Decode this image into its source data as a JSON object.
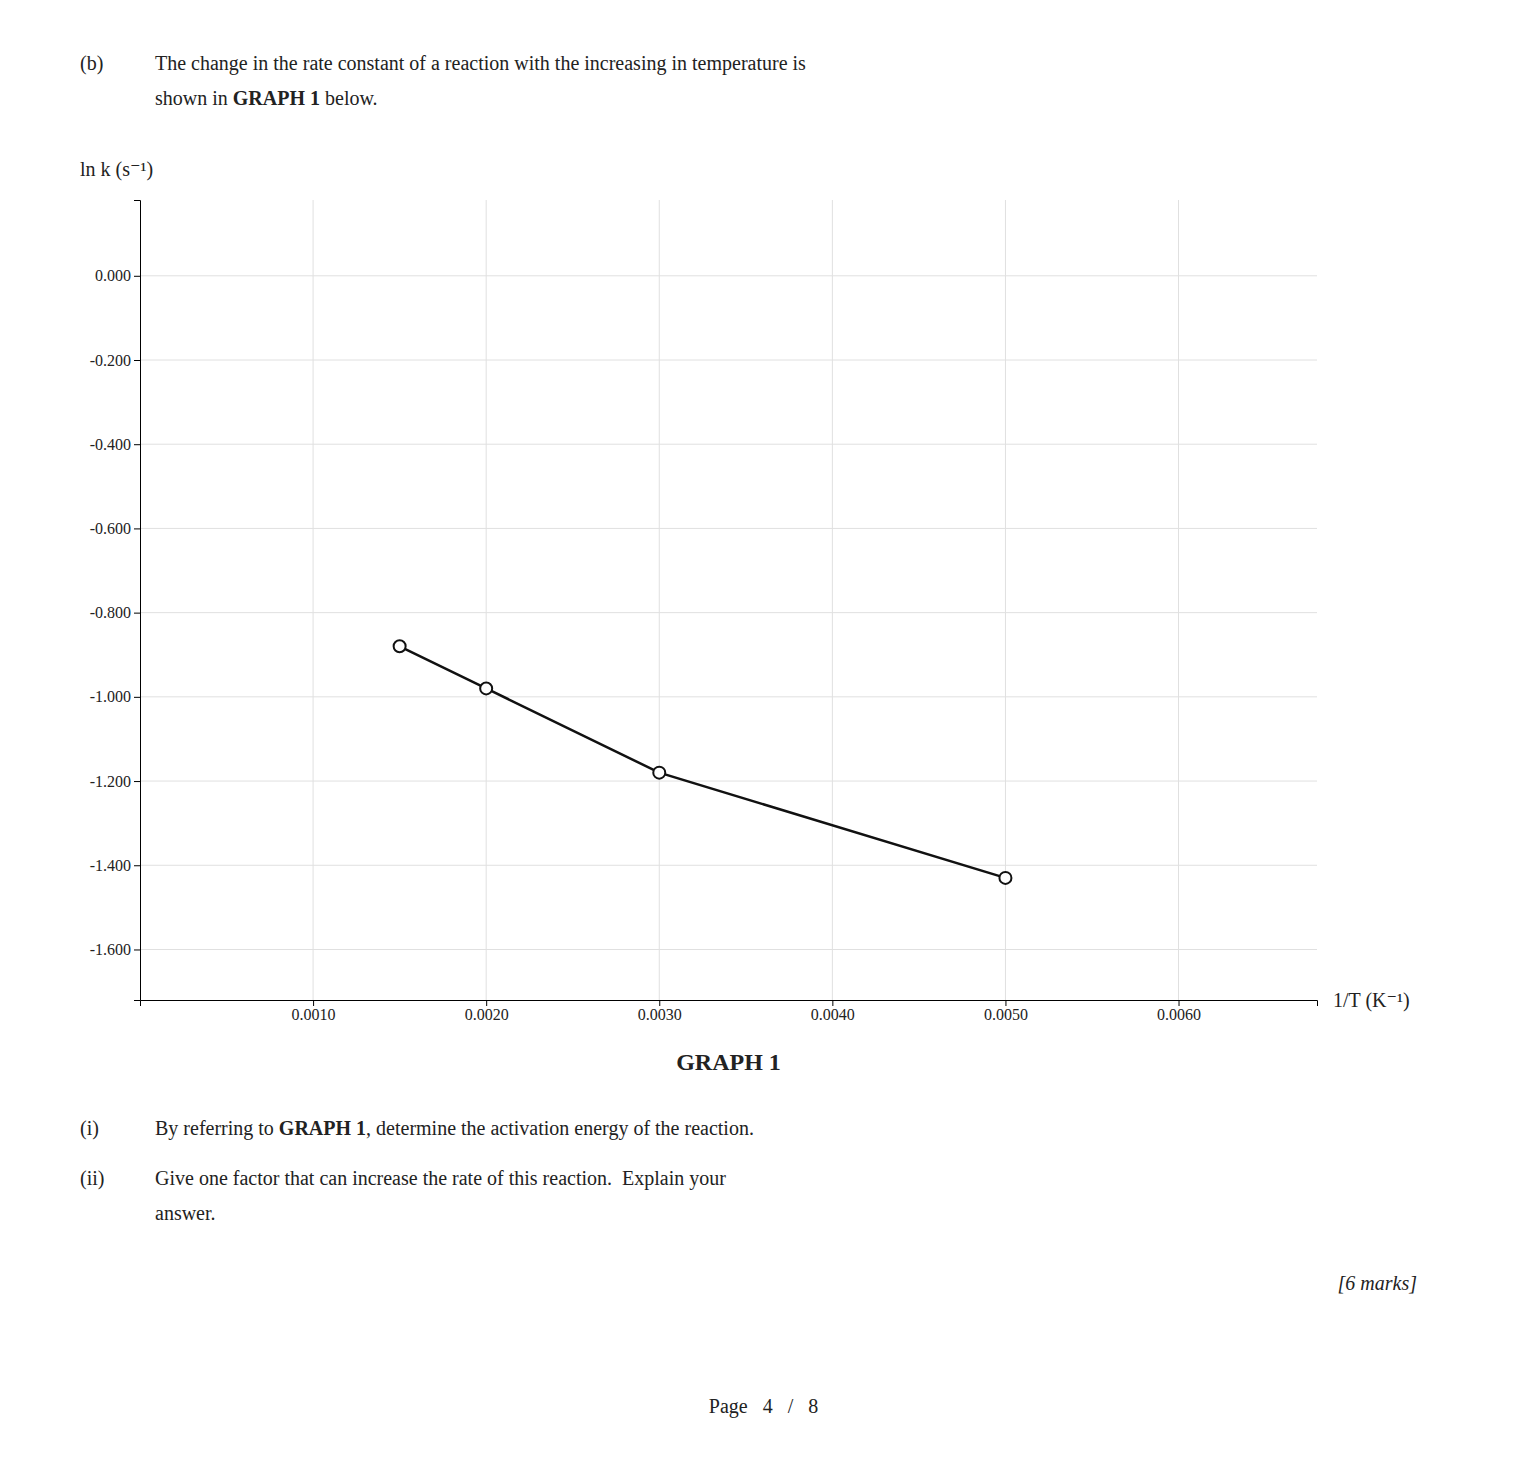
{
  "chart_data": {
    "type": "line",
    "title": "GRAPH 1",
    "x_label": "1/T (K⁻¹)",
    "y_label": "ln k (s⁻¹)",
    "x": [
      0.0015,
      0.002,
      0.003,
      0.005
    ],
    "values": [
      -0.88,
      -0.98,
      -1.18,
      -1.43
    ],
    "color": "#111111",
    "marker": "circle",
    "xlim": [
      0.0,
      0.0068
    ],
    "ylim": [
      -1.72,
      0.18
    ],
    "xticks": [
      {
        "value": 0.001,
        "label": "0.0010"
      },
      {
        "value": 0.002,
        "label": "0.0020"
      },
      {
        "value": 0.003,
        "label": "0.0030"
      },
      {
        "value": 0.004,
        "label": "0.0040"
      },
      {
        "value": 0.005,
        "label": "0.0050"
      },
      {
        "value": 0.006,
        "label": "0.0060"
      }
    ],
    "yticks": [
      {
        "value": 0,
        "label": "0.000"
      },
      {
        "value": -0.2,
        "label": "-0.200"
      },
      {
        "value": -0.4,
        "label": "-0.400"
      },
      {
        "value": -0.6,
        "label": "-0.600"
      },
      {
        "value": -0.8,
        "label": "-0.800"
      },
      {
        "value": -1.0,
        "label": "-1.000"
      },
      {
        "value": -1.2,
        "label": "-1.200"
      },
      {
        "value": -1.4,
        "label": "-1.400"
      },
      {
        "value": -1.6,
        "label": "-1.600"
      }
    ],
    "grid": true,
    "annotations": [
      [
        "(b)",
        "The change in the rate constant of a reaction with the increasing in temperature is"
      ],
      [
        "shown in ",
        "GRAPH 1",
        " below."
      ],
      [
        "(i)",
        "By referring to ",
        "GRAPH 1",
        ", determine the activation energy of the reaction."
      ],
      [
        "(ii)",
        "Give one factor that can increase the rate of this reaction.  Explain your"
      ],
      [
        "answer."
      ],
      [
        "[6 marks]"
      ],
      [
        "Page   4   /   8"
      ]
    ]
  }
}
